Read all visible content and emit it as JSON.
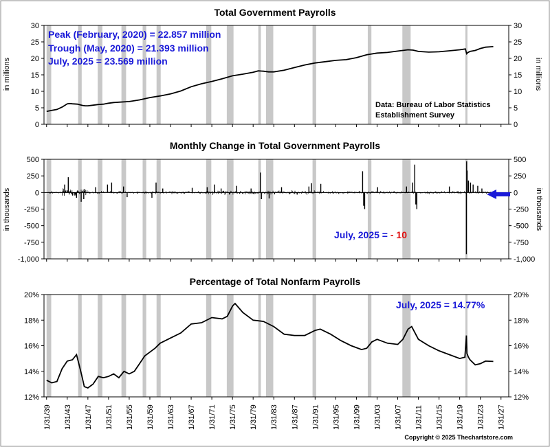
{
  "colors": {
    "line": "#000000",
    "recession_band": "#c8c8c8",
    "annotation": "#1a1ad8",
    "negative_value": "#e01010",
    "arrow": "#1a1ad8"
  },
  "x_axis": {
    "range": [
      1938.5,
      2028.5
    ],
    "tick_labels": [
      "1/31/39",
      "1/31/43",
      "1/31/47",
      "1/31/51",
      "1/31/55",
      "1/31/59",
      "1/31/63",
      "1/31/67",
      "1/31/71",
      "1/31/75",
      "1/31/79",
      "1/31/83",
      "1/31/87",
      "1/31/91",
      "1/31/95",
      "1/31/99",
      "1/31/03",
      "1/31/07",
      "1/31/11",
      "1/31/15",
      "1/31/19",
      "1/31/23",
      "1/31/27"
    ],
    "tick_years": [
      1939,
      1943,
      1947,
      1951,
      1955,
      1959,
      1963,
      1967,
      1971,
      1975,
      1979,
      1983,
      1987,
      1991,
      1995,
      1999,
      2003,
      2007,
      2011,
      2015,
      2019,
      2023,
      2027
    ]
  },
  "recessions": [
    [
      1939.0,
      1939.9
    ],
    [
      1945.1,
      1945.8
    ],
    [
      1948.9,
      1949.8
    ],
    [
      1953.5,
      1954.4
    ],
    [
      1957.6,
      1958.3
    ],
    [
      1960.3,
      1961.1
    ],
    [
      1969.9,
      1970.9
    ],
    [
      1973.9,
      1975.2
    ],
    [
      1980.0,
      1980.5
    ],
    [
      1981.5,
      1982.9
    ],
    [
      1990.5,
      1991.2
    ],
    [
      2001.2,
      2001.9
    ],
    [
      2007.9,
      2009.5
    ],
    [
      2020.1,
      2020.4
    ]
  ],
  "copyright": "Copyright © 2025 Thechartstore.com",
  "chart_data": [
    {
      "type": "line",
      "title": "Total Government Payrolls",
      "ylabel": "in millions",
      "ylim": [
        0,
        30
      ],
      "y_ticks": [
        "0",
        "5",
        "10",
        "15",
        "20",
        "25",
        "30"
      ],
      "y_tick_values": [
        0,
        5,
        10,
        15,
        20,
        25,
        30
      ],
      "annotations": {
        "peak": "Peak (February, 2020) = 22.857 million",
        "trough": "Trough (May, 2020) = 21.393 million",
        "latest": "July, 2025 = 23.569 million"
      },
      "source_line1": "Data:  Bureau of Labor Statistics",
      "source_line2": "Establishment Survey",
      "series": [
        {
          "name": "Total Government Payrolls (millions)",
          "x": [
            1939.0,
            1940,
            1941,
            1942,
            1943,
            1943.5,
            1944,
            1945,
            1946,
            1946.5,
            1947,
            1948,
            1949,
            1950,
            1951,
            1952,
            1953,
            1955,
            1957,
            1959,
            1961,
            1963,
            1965,
            1967,
            1969,
            1971,
            1973,
            1975,
            1977,
            1979,
            1980,
            1981,
            1982,
            1983,
            1985,
            1987,
            1989,
            1991,
            1993,
            1995,
            1997,
            1999,
            2001,
            2003,
            2005,
            2007,
            2009,
            2010,
            2011,
            2013,
            2015,
            2017,
            2019,
            2020.1,
            2020.35,
            2020.6,
            2021,
            2022,
            2023,
            2024,
            2025.5
          ],
          "y": [
            3.9,
            4.2,
            4.5,
            5.2,
            6.2,
            6.3,
            6.2,
            6.1,
            5.7,
            5.6,
            5.6,
            5.8,
            6.0,
            6.1,
            6.4,
            6.6,
            6.7,
            6.9,
            7.4,
            8.1,
            8.6,
            9.2,
            10.1,
            11.4,
            12.3,
            13.0,
            13.8,
            14.7,
            15.2,
            15.8,
            16.2,
            16.1,
            15.9,
            15.9,
            16.4,
            17.2,
            18.0,
            18.6,
            19.0,
            19.4,
            19.6,
            20.2,
            21.1,
            21.6,
            21.8,
            22.2,
            22.6,
            22.5,
            22.1,
            21.9,
            22.0,
            22.3,
            22.6,
            22.857,
            21.393,
            21.8,
            22.1,
            22.4,
            23.0,
            23.4,
            23.569
          ]
        }
      ]
    },
    {
      "type": "bar",
      "title": "Monthly Change in Total Government Payrolls",
      "ylabel": "in thousands",
      "ylim": [
        -1000,
        500
      ],
      "y_ticks": [
        "500",
        "250",
        "0",
        "-250",
        "-500",
        "-750",
        "-1,000"
      ],
      "y_tick_values": [
        500,
        250,
        0,
        -250,
        -500,
        -750,
        -1000
      ],
      "latest_prefix": "July, 2025 = ",
      "latest_value": "- 10",
      "series": [
        {
          "name": "Notable monthly changes (thousands)",
          "x": [
            1942.5,
            1943.2,
            1944.8,
            1945.7,
            1946.2,
            1948.5,
            1950.8,
            1951.6,
            1953.9,
            1954.6,
            1959.4,
            1960.2,
            1961.5,
            1967.2,
            1970.1,
            1971.5,
            1972.8,
            1975.8,
            1978.6,
            1980.4,
            1980.6,
            1982.1,
            1984.5,
            1989.8,
            1990.3,
            1992.1,
            2000.2,
            2000.4,
            2000.6,
            2003.1,
            2008.7,
            2009.9,
            2010.3,
            2010.5,
            2010.7,
            2017.0,
            2020.3,
            2020.35,
            2020.45,
            2020.7,
            2021.1,
            2021.6,
            2022.5,
            2023.3,
            2025.5
          ],
          "y": [
            120,
            230,
            -80,
            -140,
            -100,
            80,
            120,
            150,
            90,
            -70,
            -80,
            150,
            60,
            70,
            80,
            120,
            60,
            100,
            60,
            300,
            -100,
            -90,
            80,
            90,
            140,
            130,
            320,
            -200,
            -250,
            80,
            90,
            150,
            420,
            -180,
            -250,
            90,
            -930,
            470,
            330,
            180,
            150,
            120,
            100,
            60,
            -10
          ]
        }
      ]
    },
    {
      "type": "line",
      "title": "Percentage of Total Nonfarm Payrolls",
      "ylabel": "",
      "ylim": [
        12,
        20
      ],
      "y_ticks": [
        "20%",
        "18%",
        "16%",
        "14%",
        "12%"
      ],
      "y_tick_values": [
        20,
        18,
        16,
        14,
        12
      ],
      "annotation": "July, 2025 = 14.77%",
      "series": [
        {
          "name": "Government share of nonfarm payrolls (%)",
          "x": [
            1939.0,
            1940,
            1941,
            1942,
            1943,
            1944,
            1944.8,
            1945.3,
            1945.8,
            1946.3,
            1947,
            1948,
            1949,
            1950,
            1951,
            1952,
            1953,
            1954,
            1955,
            1956,
            1957,
            1958,
            1959,
            1960,
            1961,
            1962,
            1963,
            1965,
            1967,
            1969,
            1971,
            1973,
            1974,
            1975,
            1975.5,
            1977,
            1979,
            1981,
            1983,
            1985,
            1987,
            1989,
            1991,
            1992,
            1994,
            1996,
            1998,
            2000,
            2001,
            2002,
            2003,
            2005,
            2007,
            2008,
            2009,
            2009.7,
            2011,
            2013,
            2015,
            2017,
            2019,
            2020.0,
            2020.3,
            2020.4,
            2020.7,
            2021,
            2022,
            2023,
            2024,
            2025.5
          ],
          "y": [
            13.3,
            13.1,
            13.2,
            14.2,
            14.8,
            14.9,
            15.3,
            14.5,
            13.7,
            12.8,
            12.7,
            13.0,
            13.6,
            13.5,
            13.6,
            13.8,
            13.5,
            14.0,
            13.8,
            14.0,
            14.6,
            15.2,
            15.5,
            15.8,
            16.2,
            16.4,
            16.6,
            17.0,
            17.7,
            17.8,
            18.2,
            18.1,
            18.3,
            19.1,
            19.3,
            18.6,
            18.0,
            17.9,
            17.5,
            16.9,
            16.8,
            16.8,
            17.2,
            17.3,
            16.9,
            16.4,
            16.0,
            15.7,
            15.8,
            16.3,
            16.5,
            16.2,
            16.1,
            16.5,
            17.3,
            17.5,
            16.5,
            16.0,
            15.6,
            15.3,
            15.0,
            15.1,
            16.8,
            15.4,
            15.1,
            14.9,
            14.5,
            14.6,
            14.8,
            14.77
          ]
        }
      ]
    }
  ]
}
